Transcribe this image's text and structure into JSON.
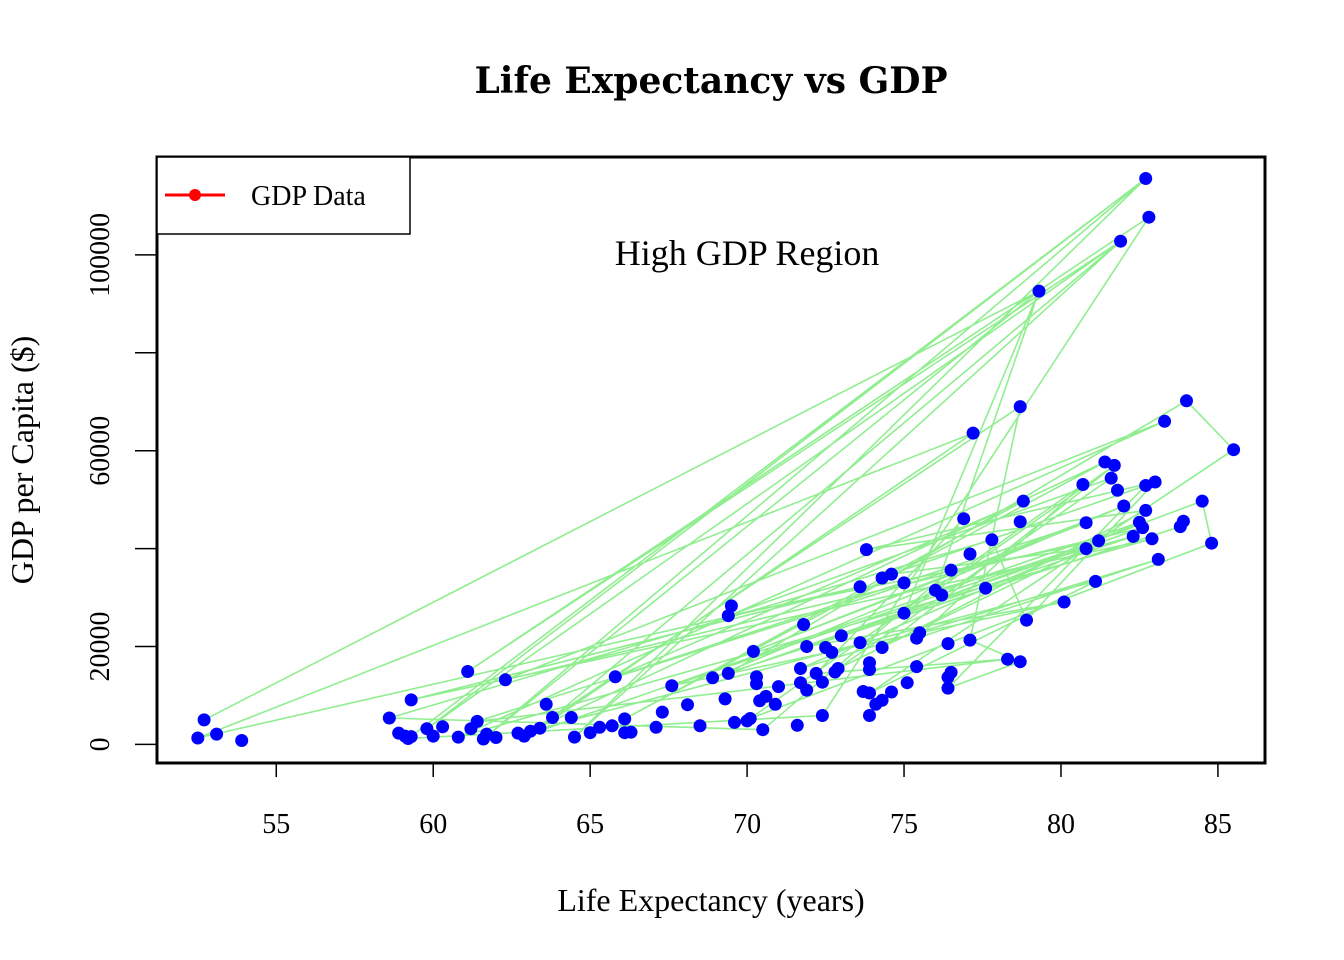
{
  "chart_data": {
    "type": "scatter",
    "title": "Life Expectancy vs GDP",
    "xlabel": "Life Expectancy (years)",
    "ylabel": "GDP per Capita ($)",
    "xlim": [
      51.2,
      86.5
    ],
    "ylim": [
      -3800,
      120000
    ],
    "x_ticks": [
      55,
      60,
      65,
      70,
      75,
      80,
      85
    ],
    "y_ticks": [
      0,
      20000,
      40000,
      60000,
      80000,
      100000
    ],
    "y_tick_labels": [
      "0",
      "20000",
      "",
      "60000",
      "",
      "100000"
    ],
    "grid": false,
    "legend": {
      "position": "top-left",
      "entries": [
        {
          "label": "GDP Data",
          "color": "#ff0000"
        }
      ]
    },
    "annotation": {
      "text": "High GDP Region",
      "x": 70,
      "y": 100000
    },
    "colors": {
      "points": "#0000ff",
      "connector_line": "#90ee90",
      "legend_line": "#ff0000"
    },
    "series": [
      {
        "points": [
          [
            52.5,
            1300
          ],
          [
            52.7,
            5000
          ],
          [
            53.1,
            2100
          ],
          [
            53.9,
            800
          ],
          [
            58.6,
            5400
          ],
          [
            58.9,
            2300
          ],
          [
            59.1,
            1700
          ],
          [
            59.2,
            1200
          ],
          [
            59.3,
            1600
          ],
          [
            59.3,
            9100
          ],
          [
            59.8,
            3200
          ],
          [
            60.0,
            1700
          ],
          [
            60.3,
            3600
          ],
          [
            60.8,
            1500
          ],
          [
            61.1,
            14900
          ],
          [
            61.2,
            3200
          ],
          [
            61.4,
            4700
          ],
          [
            61.6,
            1100
          ],
          [
            61.7,
            2100
          ],
          [
            62.0,
            1400
          ],
          [
            62.3,
            13200
          ],
          [
            62.7,
            2300
          ],
          [
            62.9,
            1700
          ],
          [
            63.1,
            2700
          ],
          [
            63.4,
            3300
          ],
          [
            63.6,
            8200
          ],
          [
            63.8,
            5500
          ],
          [
            64.4,
            5500
          ],
          [
            64.5,
            1500
          ],
          [
            65.0,
            2400
          ],
          [
            65.3,
            3500
          ],
          [
            65.7,
            3800
          ],
          [
            65.8,
            13800
          ],
          [
            66.1,
            5200
          ],
          [
            66.1,
            2400
          ],
          [
            66.3,
            2500
          ],
          [
            67.1,
            3500
          ],
          [
            67.3,
            6600
          ],
          [
            67.6,
            12000
          ],
          [
            68.1,
            8100
          ],
          [
            68.5,
            3800
          ],
          [
            68.9,
            13600
          ],
          [
            69.3,
            9300
          ],
          [
            69.4,
            14500
          ],
          [
            69.4,
            26300
          ],
          [
            69.5,
            28300
          ],
          [
            69.6,
            4500
          ],
          [
            70.0,
            4800
          ],
          [
            70.1,
            5300
          ],
          [
            70.2,
            19000
          ],
          [
            70.3,
            12400
          ],
          [
            70.3,
            13800
          ],
          [
            70.4,
            8900
          ],
          [
            70.5,
            3000
          ],
          [
            70.6,
            9800
          ],
          [
            70.9,
            8200
          ],
          [
            71.0,
            11800
          ],
          [
            71.6,
            3900
          ],
          [
            71.7,
            12600
          ],
          [
            71.7,
            15500
          ],
          [
            71.8,
            24500
          ],
          [
            71.9,
            11100
          ],
          [
            71.9,
            20000
          ],
          [
            72.2,
            14500
          ],
          [
            72.4,
            5900
          ],
          [
            72.4,
            12700
          ],
          [
            72.5,
            19800
          ],
          [
            72.7,
            18800
          ],
          [
            72.8,
            14800
          ],
          [
            72.9,
            15500
          ],
          [
            73.0,
            22200
          ],
          [
            73.6,
            20800
          ],
          [
            73.6,
            32200
          ],
          [
            73.7,
            10800
          ],
          [
            73.8,
            39800
          ],
          [
            73.9,
            10500
          ],
          [
            73.9,
            16700
          ],
          [
            73.9,
            15300
          ],
          [
            73.9,
            5900
          ],
          [
            74.1,
            8200
          ],
          [
            74.3,
            34000
          ],
          [
            74.3,
            9000
          ],
          [
            74.3,
            19800
          ],
          [
            74.6,
            34800
          ],
          [
            74.6,
            10700
          ],
          [
            75.0,
            33000
          ],
          [
            75.0,
            26800
          ],
          [
            75.1,
            12600
          ],
          [
            75.4,
            15900
          ],
          [
            75.4,
            21700
          ],
          [
            75.5,
            22800
          ],
          [
            76.0,
            31500
          ],
          [
            76.2,
            30500
          ],
          [
            76.4,
            11500
          ],
          [
            76.4,
            13700
          ],
          [
            76.4,
            20600
          ],
          [
            76.5,
            14700
          ],
          [
            76.5,
            35600
          ],
          [
            76.9,
            46100
          ],
          [
            77.1,
            21300
          ],
          [
            77.1,
            38900
          ],
          [
            77.2,
            63600
          ],
          [
            77.6,
            31900
          ],
          [
            77.8,
            41800
          ],
          [
            78.3,
            17400
          ],
          [
            78.7,
            16900
          ],
          [
            78.7,
            45500
          ],
          [
            78.7,
            69000
          ],
          [
            78.8,
            49700
          ],
          [
            78.9,
            25400
          ],
          [
            79.3,
            92600
          ],
          [
            80.1,
            29100
          ],
          [
            80.7,
            53100
          ],
          [
            80.8,
            40000
          ],
          [
            80.8,
            45300
          ],
          [
            81.1,
            33300
          ],
          [
            81.2,
            41600
          ],
          [
            81.4,
            57700
          ],
          [
            81.6,
            54400
          ],
          [
            81.7,
            57000
          ],
          [
            81.8,
            51900
          ],
          [
            81.9,
            102800
          ],
          [
            82.0,
            48700
          ],
          [
            82.3,
            42500
          ],
          [
            82.5,
            45400
          ],
          [
            82.6,
            44300
          ],
          [
            82.7,
            47800
          ],
          [
            82.7,
            52900
          ],
          [
            82.7,
            115600
          ],
          [
            82.8,
            107700
          ],
          [
            82.9,
            42000
          ],
          [
            83.0,
            53600
          ],
          [
            83.1,
            37800
          ],
          [
            83.3,
            66000
          ],
          [
            83.8,
            44500
          ],
          [
            83.9,
            45600
          ],
          [
            84.0,
            70200
          ],
          [
            84.5,
            49700
          ],
          [
            84.8,
            41100
          ],
          [
            85.5,
            60200
          ]
        ]
      }
    ],
    "connector_path": [
      [
        52.7,
        5000
      ],
      [
        79.3,
        92600
      ],
      [
        61.6,
        1100
      ],
      [
        82.7,
        115600
      ],
      [
        59.2,
        1200
      ],
      [
        72.4,
        5900
      ],
      [
        82.8,
        107700
      ],
      [
        61.1,
        14900
      ],
      [
        81.9,
        102800
      ],
      [
        64.5,
        1500
      ],
      [
        82.7,
        115600
      ],
      [
        59.8,
        3200
      ],
      [
        81.9,
        102800
      ],
      [
        63.4,
        3300
      ],
      [
        77.2,
        63600
      ],
      [
        52.5,
        1300
      ],
      [
        73.6,
        32200
      ],
      [
        59.3,
        9100
      ],
      [
        82.9,
        42000
      ],
      [
        60.8,
        1500
      ],
      [
        83.3,
        66000
      ],
      [
        62.3,
        13200
      ],
      [
        82.6,
        44300
      ],
      [
        69.4,
        14500
      ],
      [
        84.0,
        70200
      ],
      [
        85.5,
        60200
      ],
      [
        73.9,
        10500
      ],
      [
        81.1,
        33300
      ],
      [
        63.1,
        2700
      ],
      [
        81.4,
        57700
      ],
      [
        66.1,
        5200
      ],
      [
        78.8,
        49700
      ],
      [
        65.8,
        13800
      ],
      [
        80.8,
        45300
      ],
      [
        70.2,
        19000
      ],
      [
        82.0,
        48700
      ],
      [
        68.9,
        13600
      ],
      [
        83.8,
        44500
      ],
      [
        73.0,
        22200
      ],
      [
        84.5,
        49700
      ],
      [
        84.8,
        41100
      ],
      [
        70.1,
        5300
      ],
      [
        80.7,
        53100
      ],
      [
        75.4,
        21700
      ],
      [
        83.1,
        37800
      ],
      [
        71.7,
        15500
      ],
      [
        82.5,
        45400
      ],
      [
        62.9,
        1700
      ],
      [
        78.7,
        69000
      ],
      [
        77.1,
        21300
      ],
      [
        78.7,
        16900
      ],
      [
        76.4,
        11500
      ],
      [
        82.7,
        52900
      ],
      [
        74.6,
        34800
      ],
      [
        80.8,
        40000
      ],
      [
        72.9,
        15500
      ],
      [
        81.6,
        54400
      ],
      [
        69.4,
        26300
      ],
      [
        81.2,
        41600
      ],
      [
        67.6,
        12000
      ],
      [
        80.1,
        29100
      ],
      [
        71.9,
        20000
      ],
      [
        82.3,
        42500
      ],
      [
        76.0,
        31500
      ],
      [
        79.3,
        92600
      ],
      [
        75.0,
        26800
      ],
      [
        81.7,
        57000
      ],
      [
        74.3,
        19800
      ],
      [
        82.7,
        47800
      ],
      [
        73.8,
        39800
      ],
      [
        83.0,
        53600
      ],
      [
        78.9,
        25400
      ],
      [
        77.8,
        41800
      ],
      [
        58.6,
        5400
      ],
      [
        70.5,
        3000
      ],
      [
        76.5,
        35600
      ],
      [
        61.4,
        4700
      ],
      [
        78.3,
        17400
      ],
      [
        72.2,
        14500
      ],
      [
        76.9,
        46100
      ]
    ]
  }
}
